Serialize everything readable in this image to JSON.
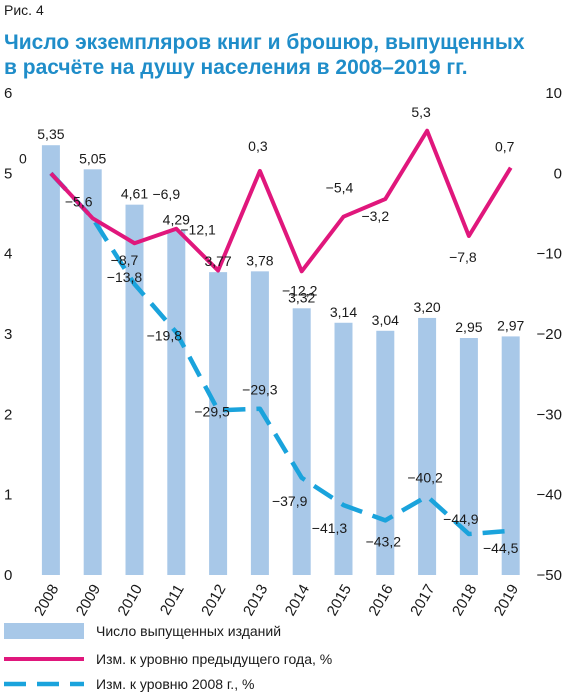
{
  "figure_label": "Рис. 4",
  "title_line1": "Число экземпляров книг и брошюр, выпущенных",
  "title_line2": "в расчёте на душу населения в 2008–2019 гг.",
  "colors": {
    "bars": "#a8c8e8",
    "prev_year_line": "#e0177c",
    "base_2008_line": "#1aa3dc",
    "text": "#1a1a1a",
    "title": "#1f8dc9"
  },
  "chart_data": {
    "type": "bar+line",
    "categories": [
      "2008",
      "2009",
      "2010",
      "2011",
      "2012",
      "2013",
      "2014",
      "2015",
      "2016",
      "2017",
      "2018",
      "2019"
    ],
    "left_axis": {
      "ticks": [
        "0",
        "1",
        "2",
        "3",
        "4",
        "5",
        "6"
      ],
      "min": 0,
      "max": 6
    },
    "right_axis": {
      "ticks": [
        "10",
        "0",
        "−10",
        "−20",
        "−30",
        "−40",
        "−50"
      ],
      "min": -50,
      "max": 10
    },
    "series": [
      {
        "name": "Число выпущенных изданий",
        "type": "bar",
        "axis": "left",
        "values": [
          5.35,
          5.05,
          4.61,
          4.29,
          3.77,
          3.78,
          3.32,
          3.14,
          3.04,
          3.2,
          2.95,
          2.97
        ],
        "labels": [
          "5,35",
          "5,05",
          "4,61",
          "4,29",
          "3,77",
          "3,78",
          "3,32",
          "3,14",
          "3,04",
          "3,20",
          "2,95",
          "2,97"
        ]
      },
      {
        "name": "Изм. к уровню предыдущего года, %",
        "type": "line",
        "axis": "right",
        "values": [
          0,
          -5.6,
          -8.7,
          -6.9,
          -12.1,
          0.3,
          -12.2,
          -5.4,
          -3.2,
          5.3,
          -7.8,
          0.7
        ],
        "labels": [
          "0",
          "−5,6",
          "−8,7",
          "−6,9",
          "−12,1",
          "0,3",
          "−12,2",
          "−5,4",
          "−3,2",
          "5,3",
          "−7,8",
          "0,7"
        ]
      },
      {
        "name": "Изм. к уровню 2008 г., %",
        "type": "line",
        "style": "dashed",
        "axis": "right",
        "values": [
          0,
          -5.6,
          -13.8,
          -19.8,
          -29.5,
          -29.3,
          -37.9,
          -41.3,
          -43.2,
          -40.2,
          -44.9,
          -44.5
        ],
        "labels": [
          "",
          "",
          "−13,8",
          "−19,8",
          "−29,5",
          "−29,3",
          "−37,9",
          "−41,3",
          "−43,2",
          "−40,2",
          "−44,9",
          "−44,5"
        ]
      }
    ],
    "legend_position": "bottom"
  }
}
